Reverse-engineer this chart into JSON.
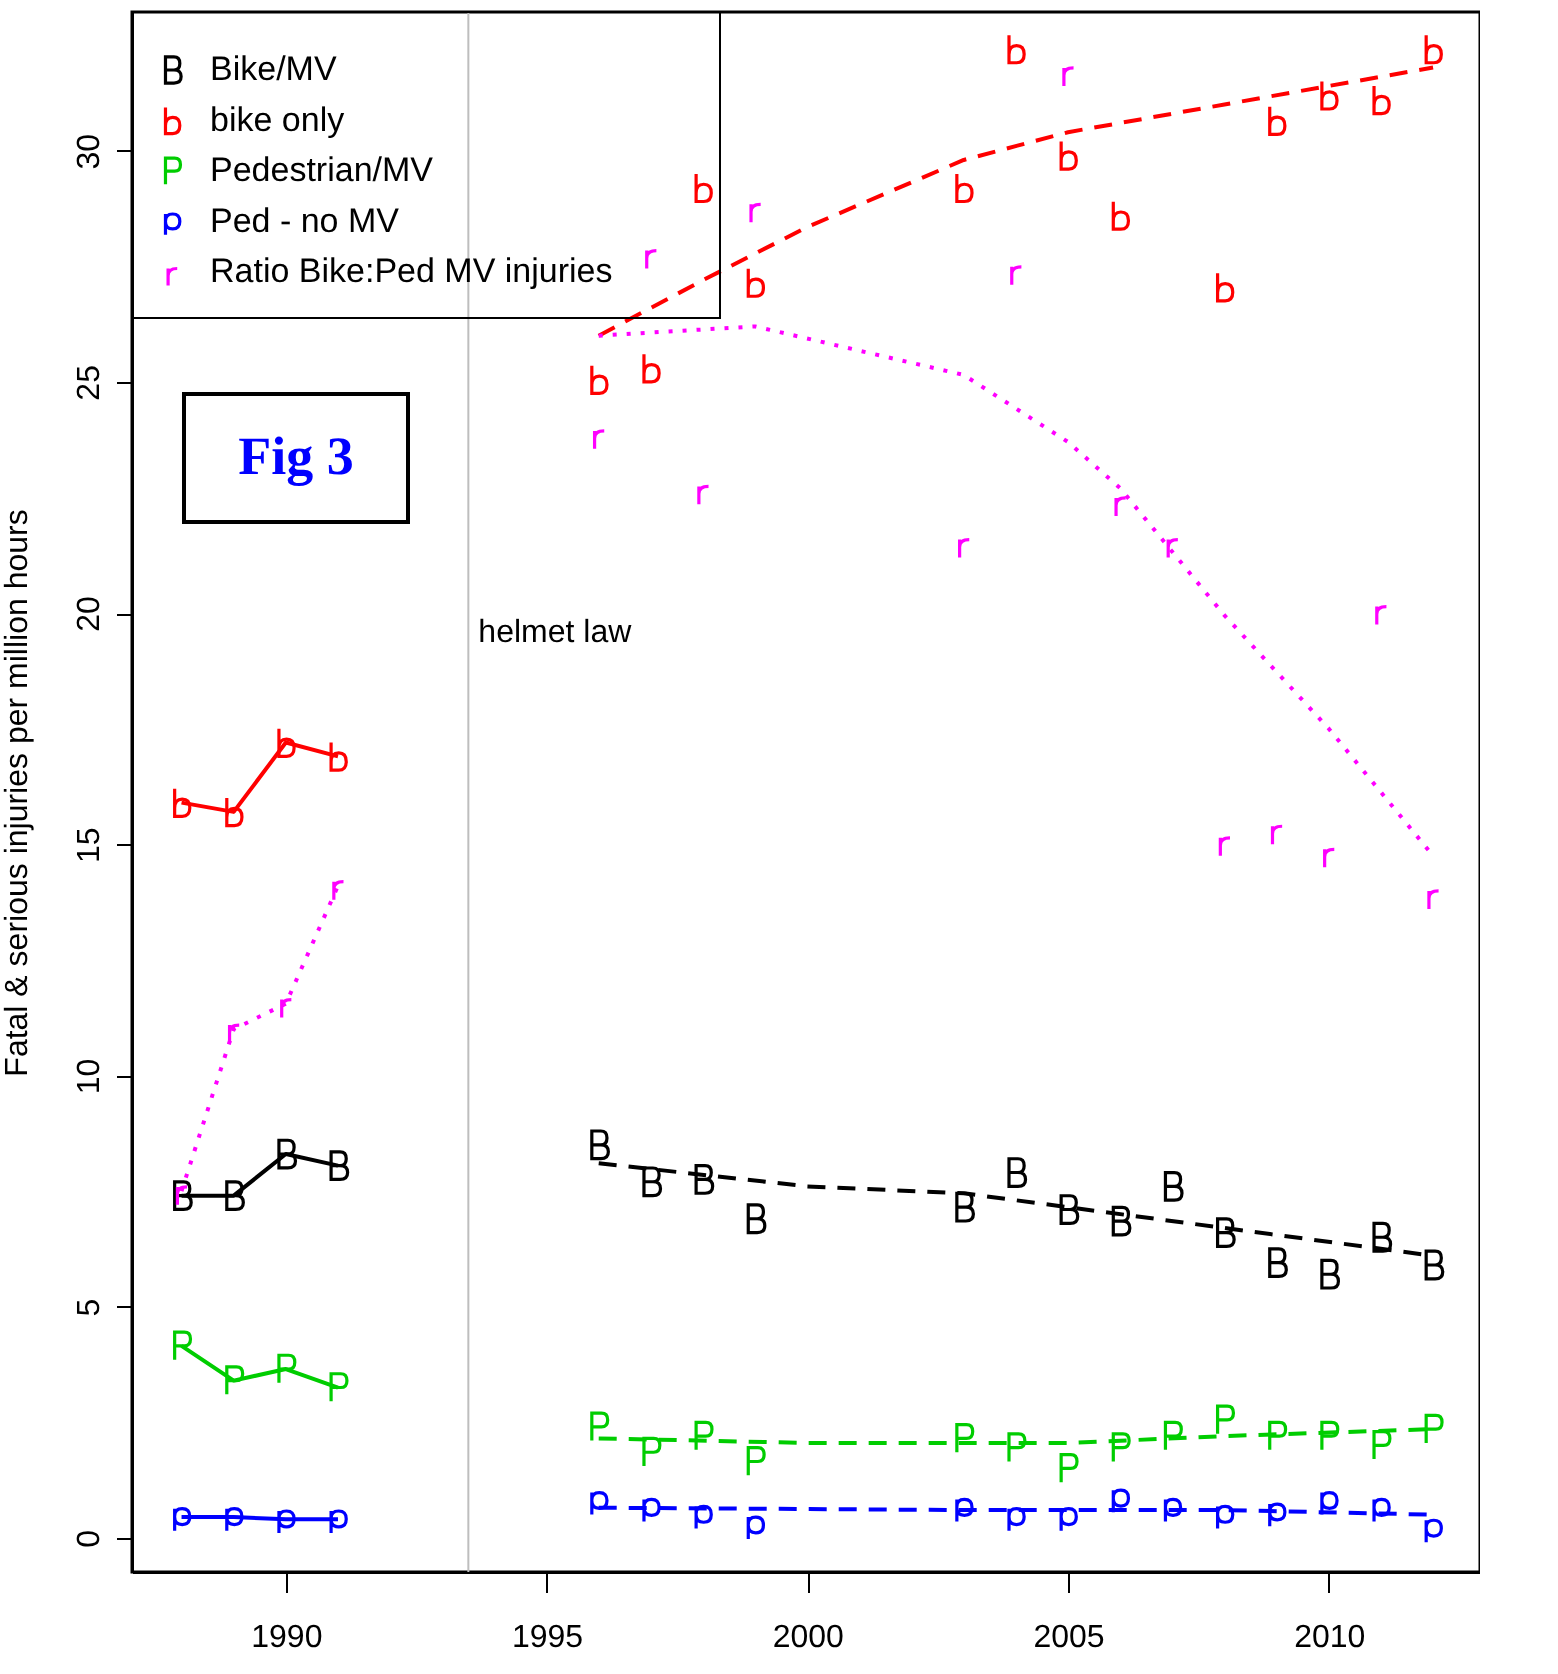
{
  "chart_data": {
    "type": "scatter",
    "ylabel": "Fatal & serious injuries per million hours",
    "xlim": [
      1987.05,
      2012.9
    ],
    "ylim": [
      -0.74,
      33
    ],
    "xticks": [
      1990,
      1995,
      2000,
      2005,
      2010
    ],
    "yticks": [
      0,
      5,
      10,
      15,
      20,
      25,
      30
    ],
    "legend": "top left",
    "annotations": [
      "Fig 3"
    ],
    "ref_lines": [
      {
        "axis": "x",
        "value": 1993.5,
        "label": "helmet law",
        "color": "#bebebe"
      }
    ],
    "series": [
      {
        "type": "line",
        "color": "#000000",
        "line_style": "solid",
        "x": [
          1988,
          1989,
          1990,
          1991
        ],
        "values": [
          7.4,
          7.4,
          8.3,
          8.05
        ]
      },
      {
        "color": "#000000",
        "x": [
          1988,
          1989,
          1990,
          1991
        ],
        "values": [
          7.4,
          7.4,
          8.3,
          8.05
        ]
      },
      {
        "name": "Bike/MV",
        "color": "#000000",
        "x": [
          1996,
          1997,
          1998,
          1999,
          2003,
          2004,
          2005,
          2006,
          2007,
          2008,
          2009,
          2010,
          2011,
          2012
        ],
        "values": [
          8.5,
          7.7,
          7.75,
          6.9,
          7.15,
          7.9,
          7.1,
          6.85,
          7.6,
          6.6,
          5.95,
          5.7,
          6.5,
          5.9
        ]
      },
      {
        "type": "line",
        "color": "#000000",
        "line_style": "dashed",
        "x": [
          1996,
          2000,
          2003,
          2004,
          2008,
          2012
        ],
        "values": [
          8.1,
          7.6,
          7.45,
          7.3,
          6.7,
          6.1
        ]
      },
      {
        "type": "line",
        "color": "#ff0000",
        "line_style": "solid",
        "x": [
          1988,
          1989,
          1990,
          1991
        ],
        "values": [
          15.9,
          15.7,
          17.2,
          16.9
        ]
      },
      {
        "color": "#ff0000",
        "x": [
          1988,
          1989,
          1990,
          1991
        ],
        "values": [
          15.9,
          15.7,
          17.2,
          16.9
        ]
      },
      {
        "name": "bike only",
        "color": "#ff0000",
        "x": [
          1996,
          1997,
          1998,
          1999,
          2003,
          2004,
          2005,
          2006,
          2007,
          2008,
          2009,
          2010,
          2011,
          2012
        ],
        "values": [
          25.05,
          25.3,
          29.2,
          27.15,
          29.2,
          32.2,
          29.9,
          28.6,
          null,
          27.05,
          30.65,
          31.2,
          31.1,
          32.2
        ]
      },
      {
        "type": "line",
        "color": "#ff0000",
        "line_style": "dashed",
        "x": [
          1996,
          1998,
          2000,
          2003,
          2005,
          2008,
          2010,
          2012
        ],
        "values": [
          26.0,
          27.2,
          28.35,
          29.8,
          30.4,
          31.0,
          31.4,
          31.8
        ]
      },
      {
        "type": "line",
        "color": "#00cd00",
        "line_style": "solid",
        "x": [
          1988,
          1989,
          1990,
          1991
        ],
        "values": [
          4.15,
          3.4,
          3.65,
          3.25
        ]
      },
      {
        "color": "#00cd00",
        "x": [
          1988,
          1989,
          1990,
          1991
        ],
        "values": [
          4.15,
          3.4,
          3.65,
          3.25
        ]
      },
      {
        "name": "Pedestrian/MV",
        "color": "#00cd00",
        "x": [
          1996,
          1997,
          1998,
          1999,
          2003,
          2004,
          2005,
          2006,
          2007,
          2008,
          2009,
          2010,
          2011,
          2012
        ],
        "values": [
          2.4,
          1.85,
          2.2,
          1.65,
          2.15,
          1.95,
          1.5,
          1.95,
          2.2,
          2.55,
          2.2,
          2.2,
          2.0,
          2.35
        ]
      },
      {
        "type": "line",
        "color": "#00cd00",
        "line_style": "dashed",
        "x": [
          1996,
          2000,
          2005,
          2008,
          2012
        ],
        "values": [
          2.15,
          2.05,
          2.05,
          2.2,
          2.35
        ]
      },
      {
        "type": "line",
        "color": "#0000ff",
        "line_style": "solid",
        "x": [
          1988,
          1989,
          1990,
          1991
        ],
        "values": [
          0.45,
          0.45,
          0.4,
          0.4
        ]
      },
      {
        "color": "#0000ff",
        "x": [
          1988,
          1989,
          1990,
          1991
        ],
        "values": [
          0.45,
          0.45,
          0.4,
          0.4
        ]
      },
      {
        "name": "Ped - no MV",
        "color": "#0000ff",
        "x": [
          1996,
          1997,
          1998,
          1999,
          2003,
          2004,
          2005,
          2006,
          2007,
          2008,
          2009,
          2010,
          2011,
          2012
        ],
        "values": [
          0.8,
          0.65,
          0.5,
          0.27,
          0.65,
          0.45,
          0.45,
          0.85,
          0.65,
          0.5,
          0.55,
          0.8,
          0.65,
          0.2
        ]
      },
      {
        "type": "line",
        "color": "#0000ff",
        "line_style": "dashed",
        "x": [
          1996,
          2003,
          2008,
          2012
        ],
        "values": [
          0.65,
          0.6,
          0.6,
          0.5
        ]
      },
      {
        "type": "line",
        "color": "#ff00ff",
        "line_style": "dotted",
        "x": [
          1988,
          1989,
          1990,
          1991
        ],
        "values": [
          7.5,
          11.0,
          11.55,
          14.1
        ]
      },
      {
        "color": "#ff00ff",
        "x": [
          1988,
          1989,
          1990,
          1991
        ],
        "values": [
          7.5,
          11.0,
          11.55,
          14.1
        ]
      },
      {
        "name": "Ratio Bike:Ped MV injuries",
        "color": "#ff00ff",
        "x": [
          1996,
          1997,
          1998,
          1999,
          2003,
          2004,
          2005,
          2006,
          2007,
          2008,
          2009,
          2010,
          2011,
          2012
        ],
        "values": [
          23.85,
          27.75,
          22.65,
          28.75,
          21.5,
          27.4,
          31.7,
          22.4,
          21.5,
          15.05,
          15.3,
          14.8,
          20.05,
          13.9
        ]
      },
      {
        "type": "line",
        "color": "#ff00ff",
        "line_style": "dotted",
        "x": [
          1996,
          1999,
          2003,
          2005,
          2006,
          2008,
          2010,
          2012
        ],
        "values": [
          26.0,
          26.2,
          25.15,
          23.7,
          22.7,
          19.95,
          17.5,
          14.75
        ]
      }
    ]
  }
}
